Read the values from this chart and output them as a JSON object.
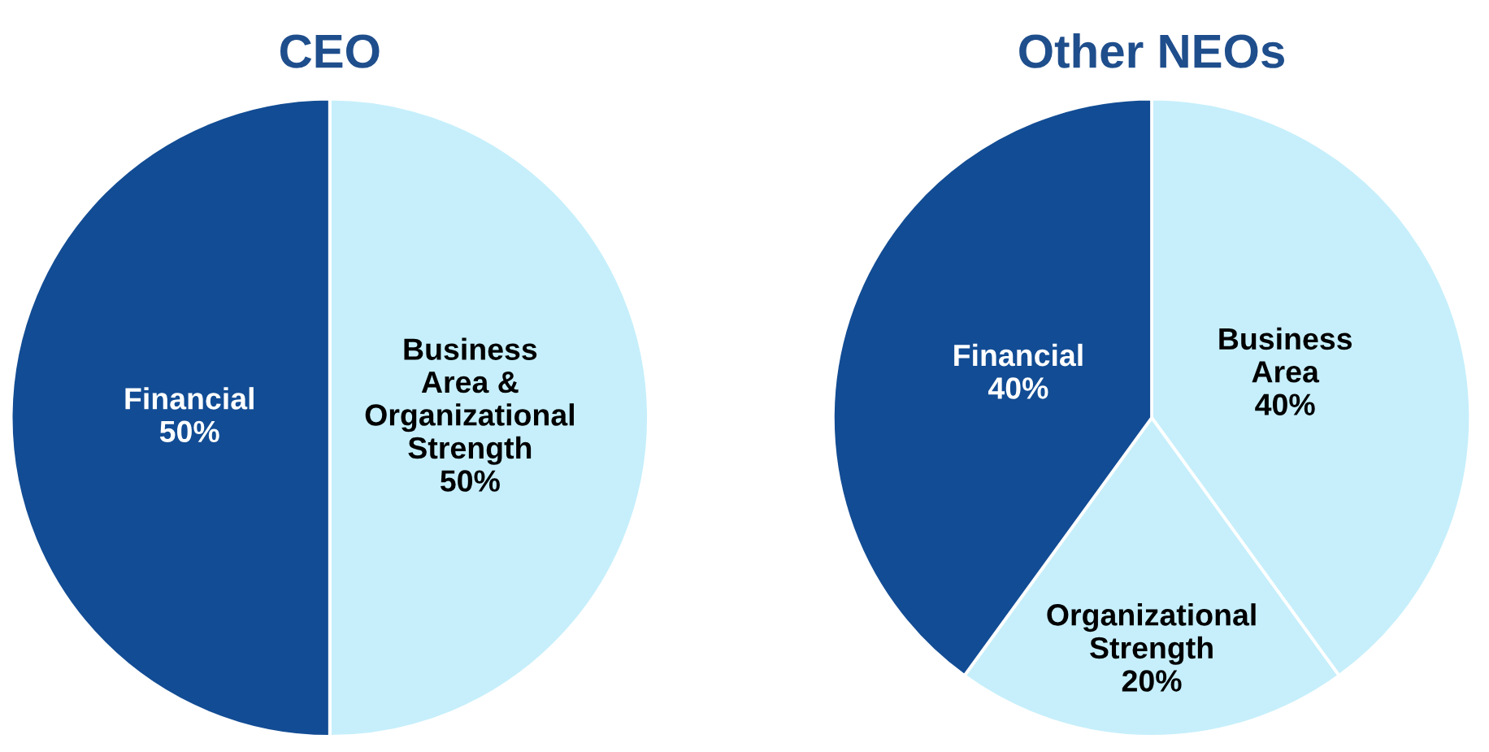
{
  "chart_data": [
    {
      "type": "pie",
      "title": "CEO",
      "categories": [
        "Business\nArea &\nOrganizational\nStrength",
        "Financial"
      ],
      "values": [
        50,
        50
      ],
      "colors": [
        "#c6effb",
        "#124c94"
      ],
      "value_labels": [
        "50%",
        "50%"
      ]
    },
    {
      "type": "pie",
      "title": "Other NEOs",
      "categories": [
        "Business\nArea",
        "Organizational\nStrength",
        "Financial"
      ],
      "values": [
        40,
        20,
        40
      ],
      "colors": [
        "#c6effb",
        "#c6effb",
        "#124c94"
      ],
      "value_labels": [
        "40%",
        "20%",
        "40%"
      ]
    }
  ]
}
